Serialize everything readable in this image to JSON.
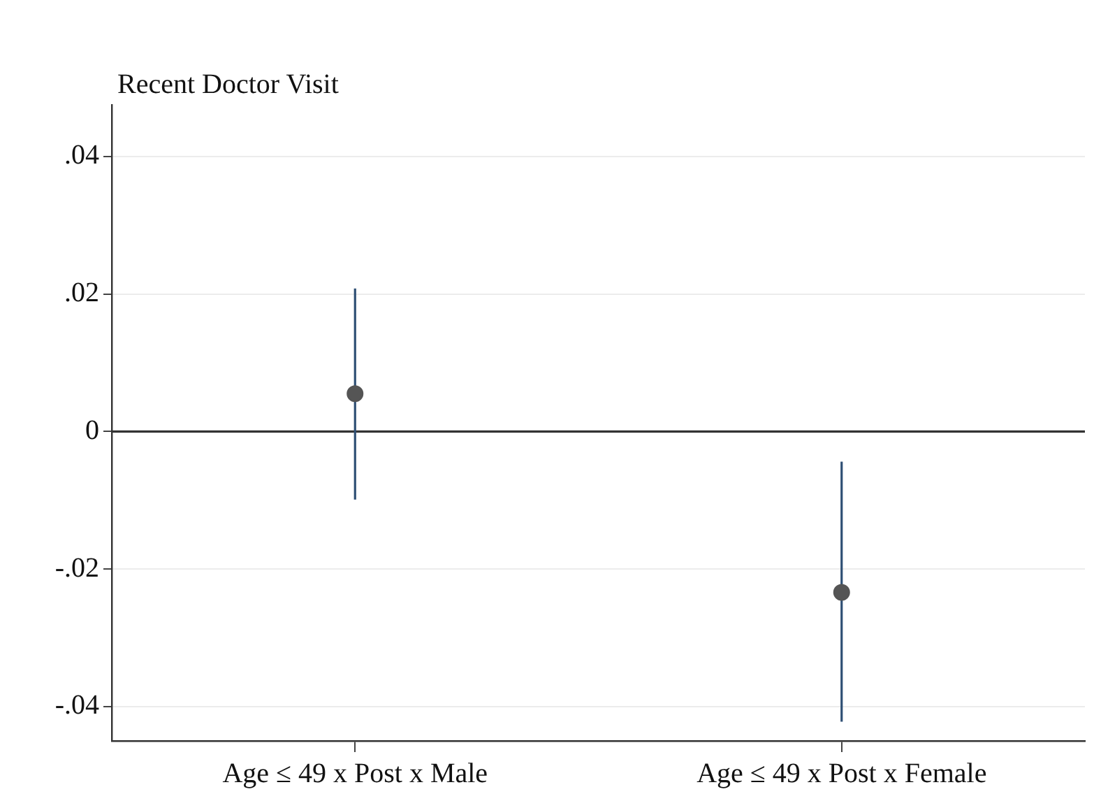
{
  "chart_data": {
    "type": "scatter",
    "ylabel": "Recent Doctor Visit",
    "categories": [
      "Age ≤ 49 x Post x Male",
      "Age ≤ 49 x Post x Female"
    ],
    "series": [
      {
        "color": "#555555",
        "values": [
          0.0055,
          -0.0234
        ],
        "errors": [
          [
            -0.0099,
            0.0208
          ],
          [
            -0.0422,
            -0.0044
          ]
        ]
      }
    ],
    "ylim": [
      -0.045,
      0.0475
    ],
    "yticks": [
      {
        "value": -0.04,
        "label": "-.04"
      },
      {
        "value": -0.02,
        "label": "-.02"
      },
      0,
      {
        "value": 0.02,
        "label": ".02"
      },
      {
        "value": 0.04,
        "label": ".04"
      }
    ],
    "ref_lines": [
      {
        "axis": "y",
        "value": 0,
        "color": "#333333"
      }
    ],
    "grid": "y",
    "marker": "circle",
    "legend": false
  }
}
